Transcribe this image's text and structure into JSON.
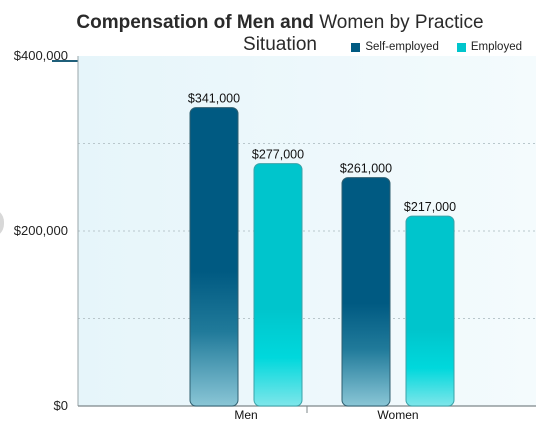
{
  "title_bold": "Compensation of Men and",
  "title_regular": "Women by Practice Situation",
  "chart_data": {
    "type": "bar",
    "title": "Compensation of Men and Women by Practice Situation",
    "categories": [
      "Men",
      "Women"
    ],
    "series": [
      {
        "name": "Self-employed",
        "values": [
          341000,
          261000
        ],
        "labels": [
          "$341,000",
          "$261,000"
        ],
        "color": "#005a82"
      },
      {
        "name": "Employed",
        "values": [
          277000,
          217000
        ],
        "labels": [
          "$277,000",
          "$217,000"
        ],
        "color": "#00c5cc"
      }
    ],
    "yticks": [
      0,
      200000,
      400000
    ],
    "ytick_labels": [
      "$0",
      "$200,000",
      "$400,000"
    ],
    "ylim": [
      0,
      400000
    ],
    "grid": true,
    "legend_position": "top-right",
    "plot_background": "#f0f9fc"
  }
}
